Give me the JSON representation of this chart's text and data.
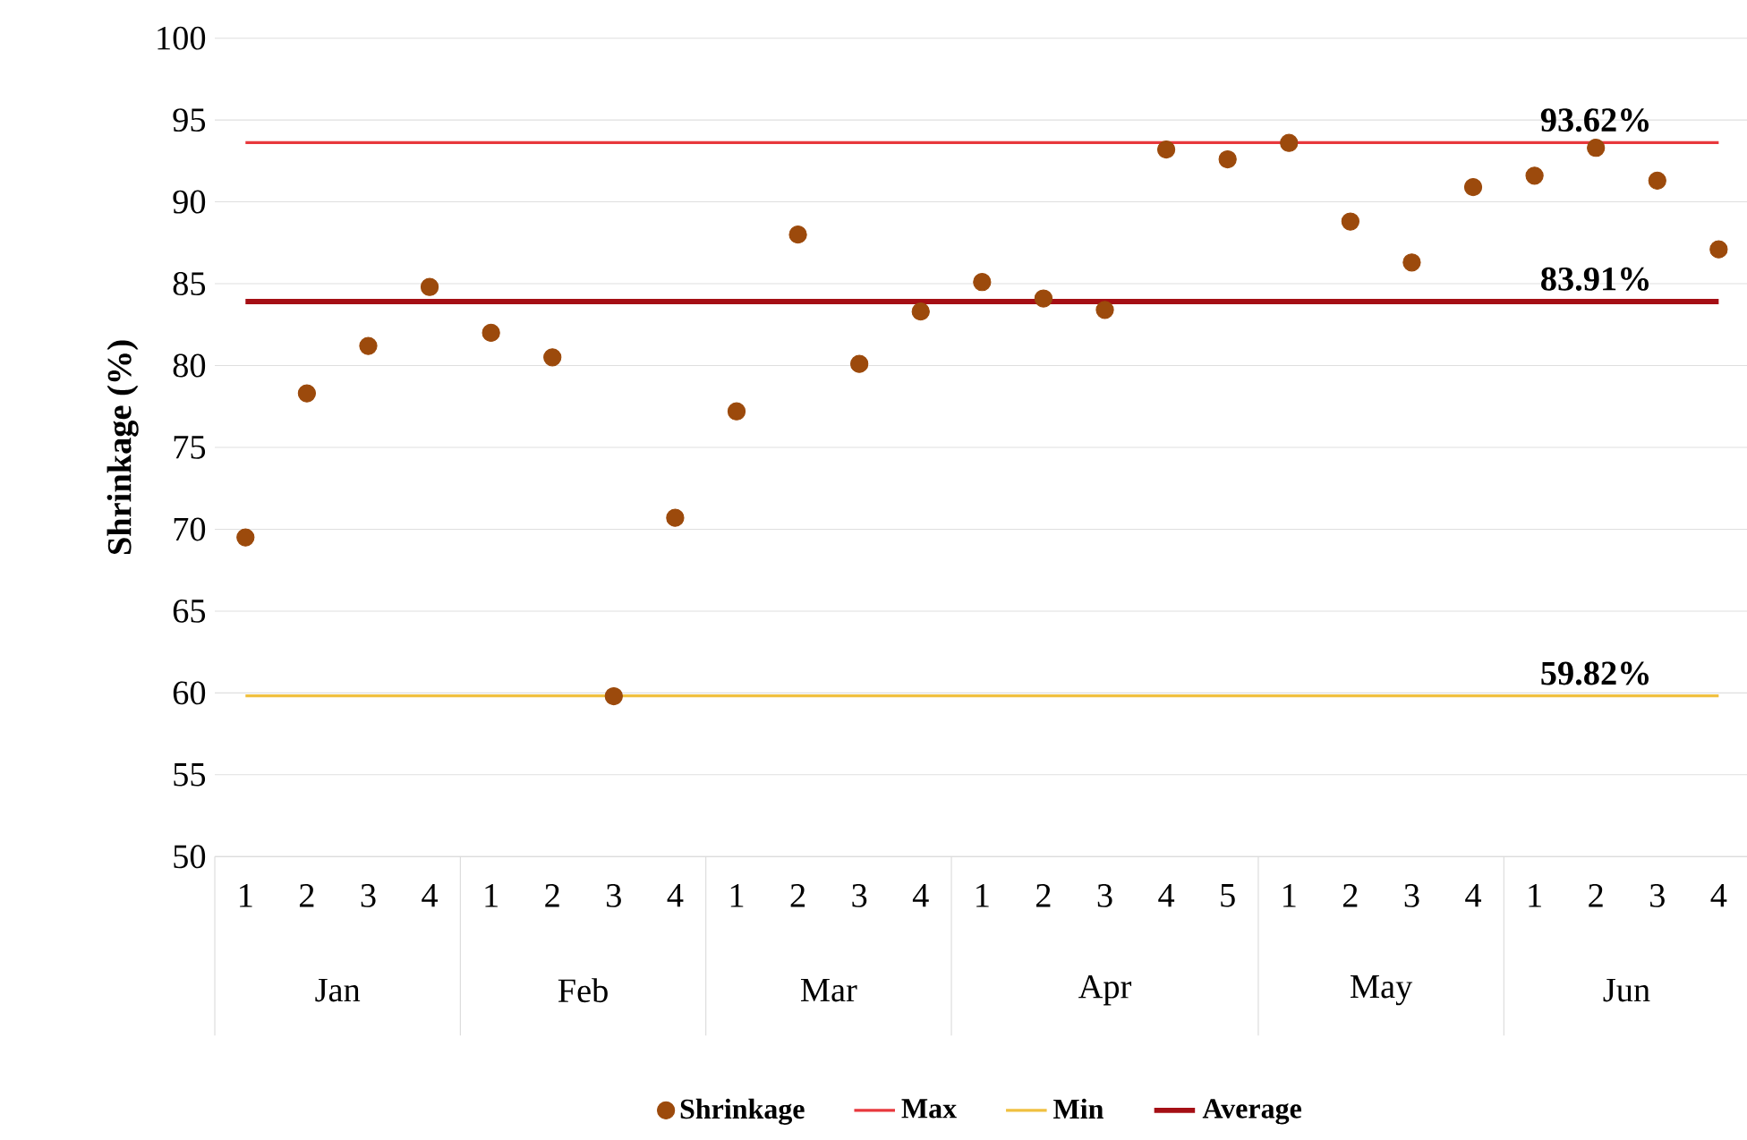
{
  "chart_data": {
    "type": "scatter",
    "ylabel": "Shrinkage (%)",
    "categories": [
      "1",
      "2",
      "3",
      "4",
      "1",
      "2",
      "3",
      "4",
      "1",
      "2",
      "3",
      "4",
      "1",
      "2",
      "3",
      "4",
      "5",
      "1",
      "2",
      "3",
      "4",
      "1",
      "2",
      "3",
      "4"
    ],
    "annotations": [
      "Jan",
      "Feb",
      "Mar",
      "Apr",
      "May",
      "Jun"
    ],
    "series": [
      {
        "name": "Shrinkage",
        "color": "#9c4a0c",
        "marker": "circle",
        "values": [
          69.5,
          78.3,
          81.2,
          84.8,
          82.0,
          80.5,
          59.8,
          70.7,
          77.2,
          88.0,
          80.1,
          83.3,
          85.1,
          84.1,
          83.4,
          93.2,
          92.6,
          93.6,
          88.8,
          86.3,
          90.9,
          91.6,
          93.3,
          91.3,
          87.1
        ]
      },
      {
        "name": "Max",
        "type": "line",
        "marker": "none",
        "color": "#e8383d",
        "values": [
          93.62,
          93.62,
          93.62,
          93.62,
          93.62,
          93.62,
          93.62,
          93.62,
          93.62,
          93.62,
          93.62,
          93.62,
          93.62,
          93.62,
          93.62,
          93.62,
          93.62,
          93.62,
          93.62,
          93.62,
          93.62,
          93.62,
          93.62,
          93.62,
          93.62
        ],
        "value_labels": [
          null,
          null,
          null,
          null,
          null,
          null,
          null,
          null,
          null,
          null,
          null,
          null,
          null,
          null,
          null,
          null,
          null,
          null,
          null,
          null,
          null,
          null,
          "93.62%",
          null,
          null
        ]
      },
      {
        "name": "Min",
        "type": "line",
        "marker": "none",
        "color": "#f0c040",
        "values": [
          59.82,
          59.82,
          59.82,
          59.82,
          59.82,
          59.82,
          59.82,
          59.82,
          59.82,
          59.82,
          59.82,
          59.82,
          59.82,
          59.82,
          59.82,
          59.82,
          59.82,
          59.82,
          59.82,
          59.82,
          59.82,
          59.82,
          59.82,
          59.82,
          59.82
        ],
        "value_labels": [
          null,
          null,
          null,
          null,
          null,
          null,
          null,
          null,
          null,
          null,
          null,
          null,
          null,
          null,
          null,
          null,
          null,
          null,
          null,
          null,
          null,
          null,
          "59.82%",
          null,
          null
        ]
      },
      {
        "name": "Average",
        "type": "line",
        "marker": "none",
        "color": "#a50f15",
        "values": [
          83.91,
          83.91,
          83.91,
          83.91,
          83.91,
          83.91,
          83.91,
          83.91,
          83.91,
          83.91,
          83.91,
          83.91,
          83.91,
          83.91,
          83.91,
          83.91,
          83.91,
          83.91,
          83.91,
          83.91,
          83.91,
          83.91,
          83.91,
          83.91,
          83.91
        ],
        "value_labels": [
          null,
          null,
          null,
          null,
          null,
          null,
          null,
          null,
          null,
          null,
          null,
          null,
          null,
          null,
          null,
          null,
          null,
          null,
          null,
          null,
          null,
          null,
          "83.91%",
          null,
          null
        ]
      }
    ],
    "ylim": [
      50,
      100
    ],
    "yticks": [
      50,
      55,
      60,
      65,
      70,
      75,
      80,
      85,
      90,
      95,
      100
    ],
    "grid": "y",
    "legend": "bottom"
  }
}
